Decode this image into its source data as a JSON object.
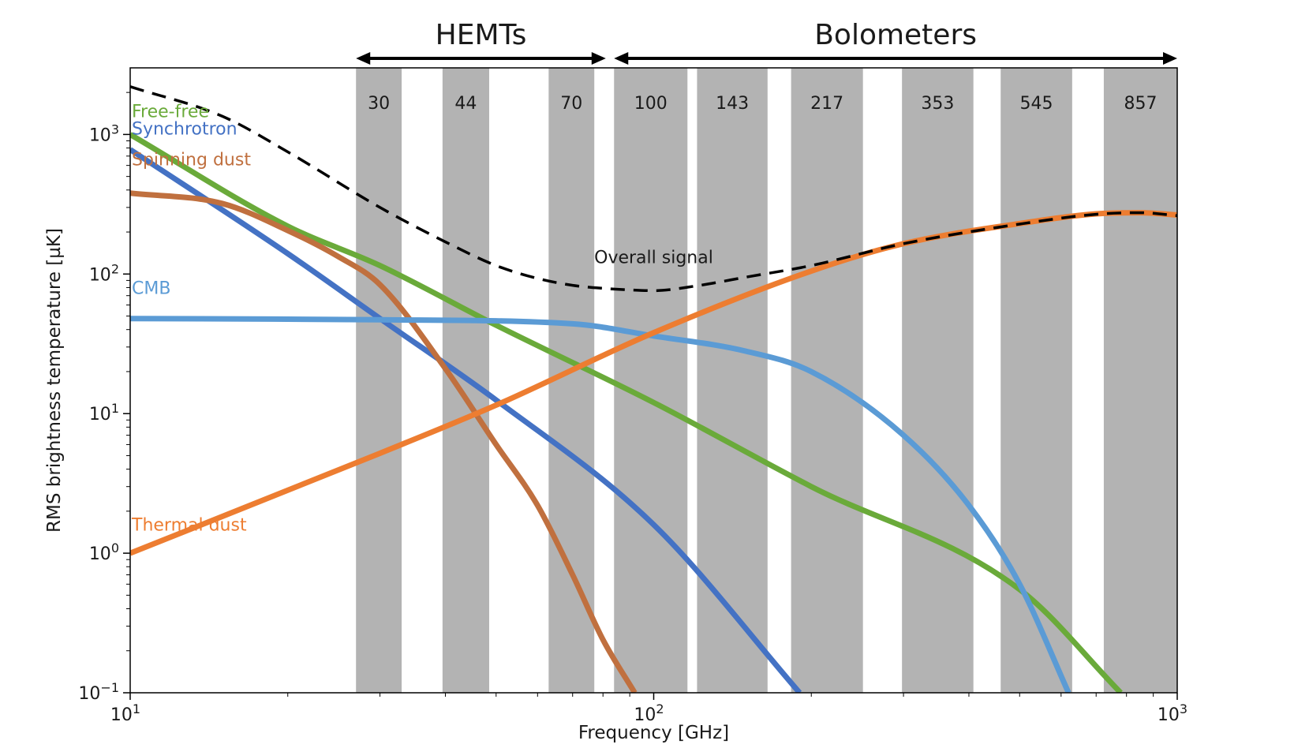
{
  "chart_data": {
    "type": "line",
    "xlabel": "Frequency [GHz]",
    "ylabel": "RMS brightness temperature [µK]",
    "xscale": "log",
    "yscale": "log",
    "xlim": [
      10,
      1000
    ],
    "ylim": [
      0.1,
      3000
    ],
    "x_ticks": [
      {
        "value": 10,
        "base": "10",
        "exp": "1"
      },
      {
        "value": 100,
        "base": "10",
        "exp": "2"
      },
      {
        "value": 1000,
        "base": "10",
        "exp": "3"
      }
    ],
    "y_ticks": [
      {
        "value": 0.1,
        "base": "10",
        "exp": "−1"
      },
      {
        "value": 1,
        "base": "10",
        "exp": "0"
      },
      {
        "value": 10,
        "base": "10",
        "exp": "1"
      },
      {
        "value": 100,
        "base": "10",
        "exp": "2"
      },
      {
        "value": 1000,
        "base": "10",
        "exp": "3"
      }
    ],
    "bands": [
      {
        "label": "30",
        "lo": 27.0,
        "hi": 33.0
      },
      {
        "label": "44",
        "lo": 39.5,
        "hi": 48.5
      },
      {
        "label": "70",
        "lo": 63.0,
        "hi": 77.0
      },
      {
        "label": "100",
        "lo": 84.0,
        "hi": 116.0
      },
      {
        "label": "143",
        "lo": 121.0,
        "hi": 165.0
      },
      {
        "label": "217",
        "lo": 183.0,
        "hi": 251.0
      },
      {
        "label": "353",
        "lo": 298.0,
        "hi": 408.0
      },
      {
        "label": "545",
        "lo": 460.0,
        "hi": 630.0
      },
      {
        "label": "857",
        "lo": 724.0,
        "hi": 1000.0
      }
    ],
    "band_color": "#b3b3b3",
    "groups": [
      {
        "label": "HEMTs",
        "from": 27.0,
        "to": 81.0
      },
      {
        "label": "Bolometers",
        "from": 84.0,
        "to": 1000.0
      }
    ],
    "series": [
      {
        "name": "Synchrotron",
        "color": "#4472c4",
        "dashed": false,
        "label_at": [
          10,
          1000
        ],
        "points": [
          [
            10,
            780
          ],
          [
            20,
            140
          ],
          [
            30,
            48
          ],
          [
            50,
            12.5
          ],
          [
            100,
            1.6
          ],
          [
            190,
            0.1
          ]
        ]
      },
      {
        "name": "Free-free",
        "color": "#6aaa3a",
        "dashed": false,
        "label_at": [
          10,
          1330
        ],
        "points": [
          [
            10,
            1000
          ],
          [
            20,
            220
          ],
          [
            30,
            115
          ],
          [
            50,
            43
          ],
          [
            100,
            12
          ],
          [
            200,
            3
          ],
          [
            500,
            0.55
          ],
          [
            780,
            0.1
          ]
        ]
      },
      {
        "name": "Spinning dust",
        "color": "#c0703f",
        "dashed": false,
        "label_at": [
          10,
          600
        ],
        "points": [
          [
            10,
            380
          ],
          [
            15,
            320
          ],
          [
            20,
            205
          ],
          [
            25,
            133
          ],
          [
            30,
            84
          ],
          [
            40,
            21
          ],
          [
            50,
            6
          ],
          [
            60,
            2.2
          ],
          [
            70,
            0.7
          ],
          [
            80,
            0.24
          ],
          [
            92,
            0.1
          ]
        ]
      },
      {
        "name": "CMB",
        "color": "#5b9bd5",
        "dashed": false,
        "label_at": [
          10,
          72
        ],
        "points": [
          [
            10,
            48
          ],
          [
            30,
            47
          ],
          [
            70,
            44
          ],
          [
            100,
            36
          ],
          [
            150,
            28
          ],
          [
            200,
            20
          ],
          [
            300,
            7
          ],
          [
            400,
            2.2
          ],
          [
            500,
            0.6
          ],
          [
            620,
            0.1
          ]
        ]
      },
      {
        "name": "Thermal dust",
        "color": "#ed7d31",
        "dashed": false,
        "label_at": [
          10,
          1.45
        ],
        "points": [
          [
            10,
            1
          ],
          [
            30,
            5.2
          ],
          [
            50,
            11.5
          ],
          [
            100,
            38
          ],
          [
            200,
            105
          ],
          [
            300,
            165
          ],
          [
            500,
            230
          ],
          [
            700,
            270
          ],
          [
            850,
            275
          ],
          [
            1000,
            265
          ]
        ]
      },
      {
        "name": "Overall signal",
        "color": "#000000",
        "dashed": true,
        "label_at": [
          100,
          120
        ],
        "points": [
          [
            10,
            2200
          ],
          [
            15,
            1350
          ],
          [
            20,
            750
          ],
          [
            30,
            300
          ],
          [
            40,
            170
          ],
          [
            50,
            115
          ],
          [
            60,
            93
          ],
          [
            70,
            83
          ],
          [
            80,
            79
          ],
          [
            90,
            77
          ],
          [
            100,
            76
          ],
          [
            120,
            82
          ],
          [
            150,
            95
          ],
          [
            200,
            115
          ],
          [
            300,
            165
          ],
          [
            500,
            228
          ],
          [
            700,
            268
          ],
          [
            850,
            275
          ],
          [
            1000,
            262
          ]
        ]
      }
    ]
  }
}
